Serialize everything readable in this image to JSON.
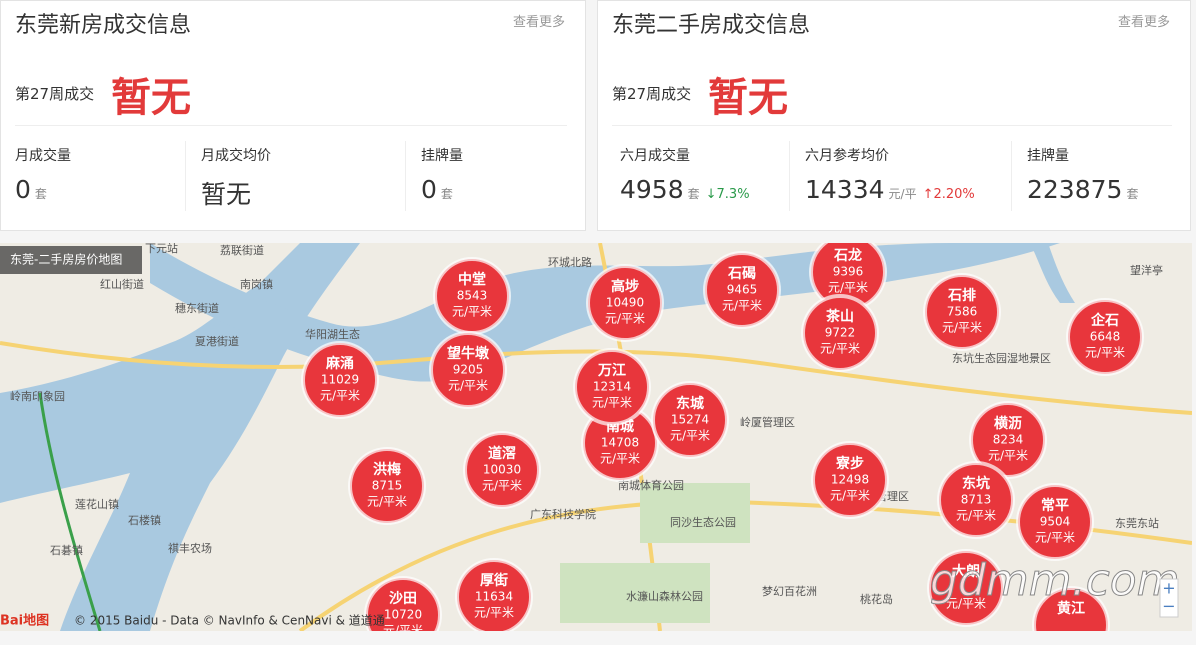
{
  "panels": [
    {
      "title": "东莞新房成交信息",
      "more": "查看更多",
      "week_label": "第27周成交",
      "week_value": "暂无",
      "stats": [
        {
          "label": "月成交量",
          "value": "0",
          "unit": "套"
        },
        {
          "label": "月成交均价",
          "value": "暂无"
        },
        {
          "label": "挂牌量",
          "value": "0",
          "unit": "套"
        }
      ]
    },
    {
      "title": "东莞二手房成交信息",
      "more": "查看更多",
      "week_label": "第27周成交",
      "week_value": "暂无",
      "stats": [
        {
          "label": "六月成交量",
          "value": "4958",
          "unit": "套",
          "change": "↓7.3%"
        },
        {
          "label": "六月参考均价",
          "value": "14334",
          "unit": "元/平",
          "change": "↑2.20%"
        },
        {
          "label": "挂牌量",
          "value": "223875",
          "unit": "套"
        }
      ]
    }
  ],
  "map": {
    "title": "东莞-二手房房价地图",
    "unit": "元/平米",
    "bubbles": [
      {
        "name": "中堂",
        "price": "8543"
      },
      {
        "name": "高埗",
        "price": "10490"
      },
      {
        "name": "石碣",
        "price": "9465"
      },
      {
        "name": "石龙",
        "price": "9396"
      },
      {
        "name": "茶山",
        "price": "9722"
      },
      {
        "name": "石排",
        "price": "7586"
      },
      {
        "name": "企石",
        "price": "6648"
      },
      {
        "name": "麻涌",
        "price": "11029"
      },
      {
        "name": "望牛墩",
        "price": "9205"
      },
      {
        "name": "南城",
        "price": "14708"
      },
      {
        "name": "万江",
        "price": "12314"
      },
      {
        "name": "东城",
        "price": "15274"
      },
      {
        "name": "道滘",
        "price": "10030"
      },
      {
        "name": "洪梅",
        "price": "8715"
      },
      {
        "name": "寮步",
        "price": "12498"
      },
      {
        "name": "横沥",
        "price": "8234"
      },
      {
        "name": "东坑",
        "price": "8713"
      },
      {
        "name": "常平",
        "price": "9504"
      },
      {
        "name": "厚街",
        "price": "11634"
      },
      {
        "name": "沙田",
        "price": "10720"
      },
      {
        "name": "大朗"
      },
      {
        "name": "黄江"
      }
    ],
    "places": [
      "下元站",
      "荔联街道",
      "红山街道",
      "南岗镇",
      "穗东街道",
      "夏港街道",
      "华阳湖生态",
      "岭南印象园",
      "莲花山镇",
      "石楼镇",
      "石碁镇",
      "祺丰农场",
      "广东科技学院",
      "南城体育公园",
      "同沙生态公园",
      "水濂山森林公园",
      "梦幻百花洲",
      "桃花岛",
      "岭厦管理区",
      "坑管理区",
      "东莞东站",
      "望洋亭",
      "东坑生态园湿地景区",
      "环城北路"
    ],
    "logo": "Bai地图",
    "copyright": "© 2015 Baidu - Data © NavInfo & CenNavi & 道道通",
    "zoom": [
      "+",
      "−"
    ],
    "watermark": "gdmm.com"
  }
}
